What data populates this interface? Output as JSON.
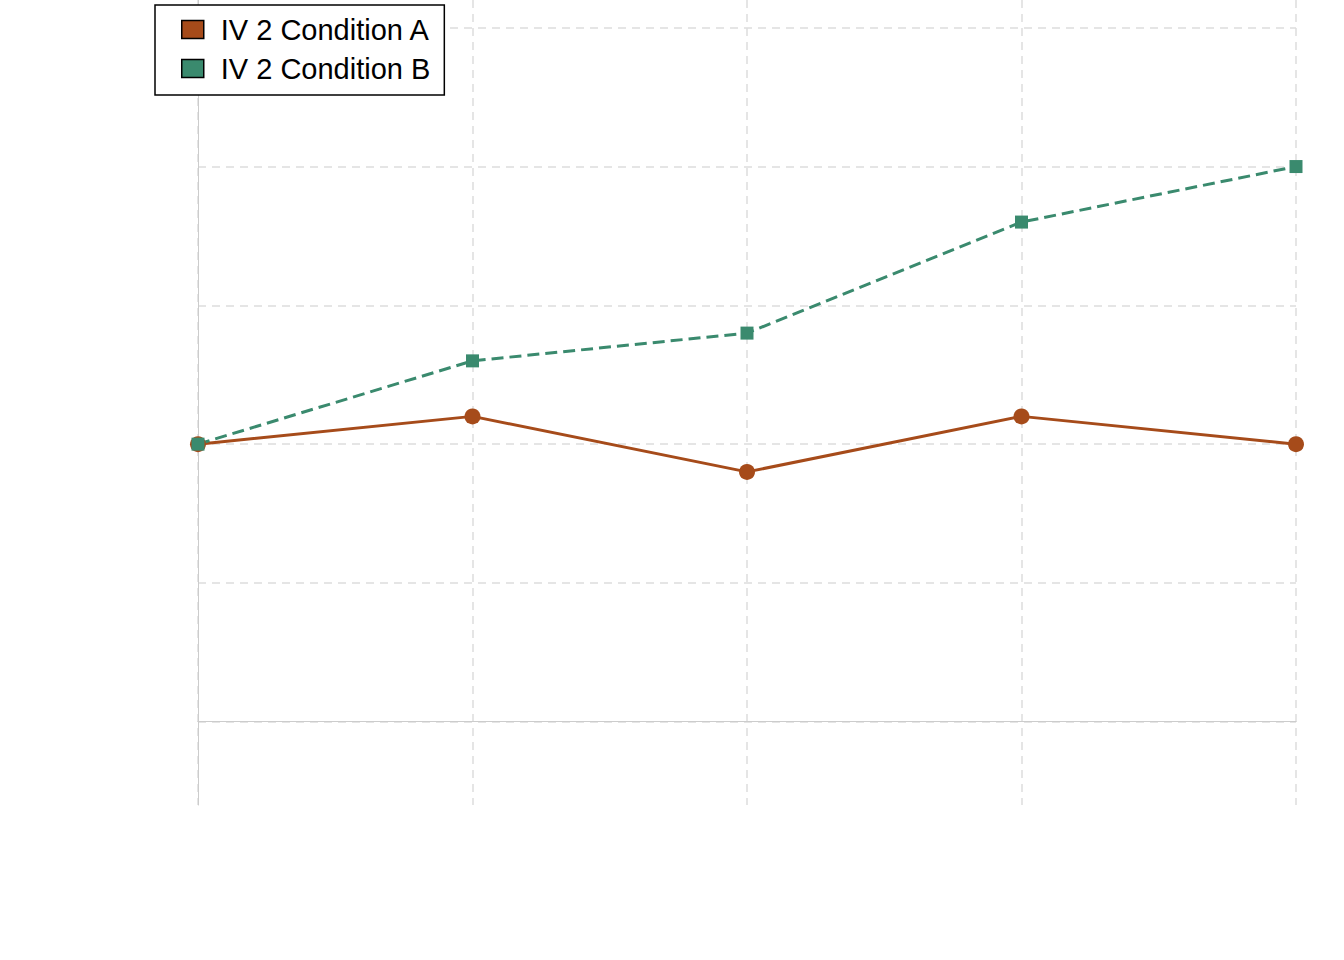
{
  "chart_data": {
    "type": "line",
    "categories": [
      null,
      null,
      null,
      null,
      null
    ],
    "series": [
      {
        "name": "IV 2 Condition A",
        "color": "#a64b1a",
        "marker": "circle",
        "line_style": "solid",
        "values": [
          2,
          2.2,
          1.8,
          2.2,
          2
        ]
      },
      {
        "name": "IV 2 Condition B",
        "color": "#3a8a6e",
        "marker": "square",
        "line_style": "dashed",
        "values": [
          2,
          2.6,
          2.8,
          3.6,
          4
        ]
      }
    ],
    "ylim": [
      -0.6,
      5.2
    ],
    "yticks": [
      0,
      1,
      2,
      3,
      4,
      5
    ],
    "grid": true,
    "legend": "top-left",
    "tick_labels": false
  }
}
